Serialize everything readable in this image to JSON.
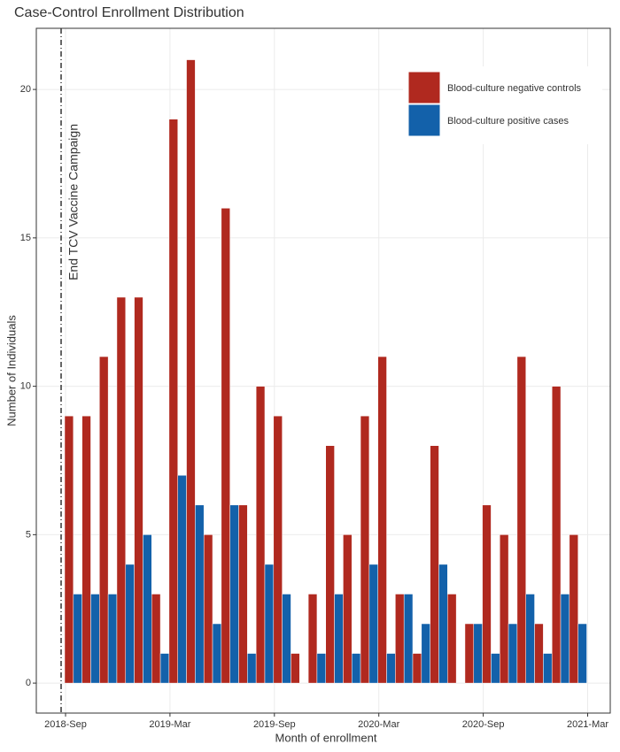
{
  "chart_data": {
    "type": "bar",
    "title": "Case-Control Enrollment Distribution",
    "x_label": "Month of enrollment",
    "y_label": "Number of Individuals",
    "annotation": "End TCV Vaccine Campaign",
    "x": [
      "2018-Sep",
      "2018-Oct",
      "2018-Nov",
      "2018-Dec",
      "2019-Jan",
      "2019-Feb",
      "2019-Mar",
      "2019-Apr",
      "2019-May",
      "2019-Jun",
      "2019-Jul",
      "2019-Aug",
      "2019-Sep",
      "2019-Oct",
      "2019-Nov",
      "2019-Dec",
      "2020-Jan",
      "2020-Feb",
      "2020-Mar",
      "2020-Apr",
      "2020-May",
      "2020-Jun",
      "2020-Jul",
      "2020-Aug",
      "2020-Sep",
      "2020-Oct",
      "2020-Nov",
      "2020-Dec",
      "2021-Jan",
      "2021-Feb"
    ],
    "series": [
      {
        "name": "Blood-culture negative controls",
        "color": "#b0291f",
        "values": [
          9,
          9,
          11,
          13,
          13,
          3,
          19,
          21,
          5,
          16,
          6,
          10,
          9,
          1,
          3,
          8,
          5,
          9,
          11,
          3,
          1,
          8,
          3,
          2,
          6,
          5,
          11,
          2,
          10,
          5
        ]
      },
      {
        "name": "Blood-culture positive cases",
        "color": "#1361aa",
        "values": [
          3,
          3,
          3,
          4,
          5,
          1,
          7,
          6,
          2,
          6,
          1,
          4,
          3,
          null,
          1,
          3,
          1,
          4,
          1,
          3,
          2,
          4,
          null,
          2,
          1,
          2,
          3,
          1,
          3,
          2
        ]
      }
    ],
    "ylim": [
      -1.01,
      22.06
    ],
    "yticks": [
      0,
      5,
      10,
      15,
      20
    ],
    "xticks": [
      "2018-Sep",
      "2019-Mar",
      "2019-Sep",
      "2020-Mar",
      "2020-Sep",
      "2021-Mar"
    ],
    "grid": true,
    "legend": "top-right"
  }
}
